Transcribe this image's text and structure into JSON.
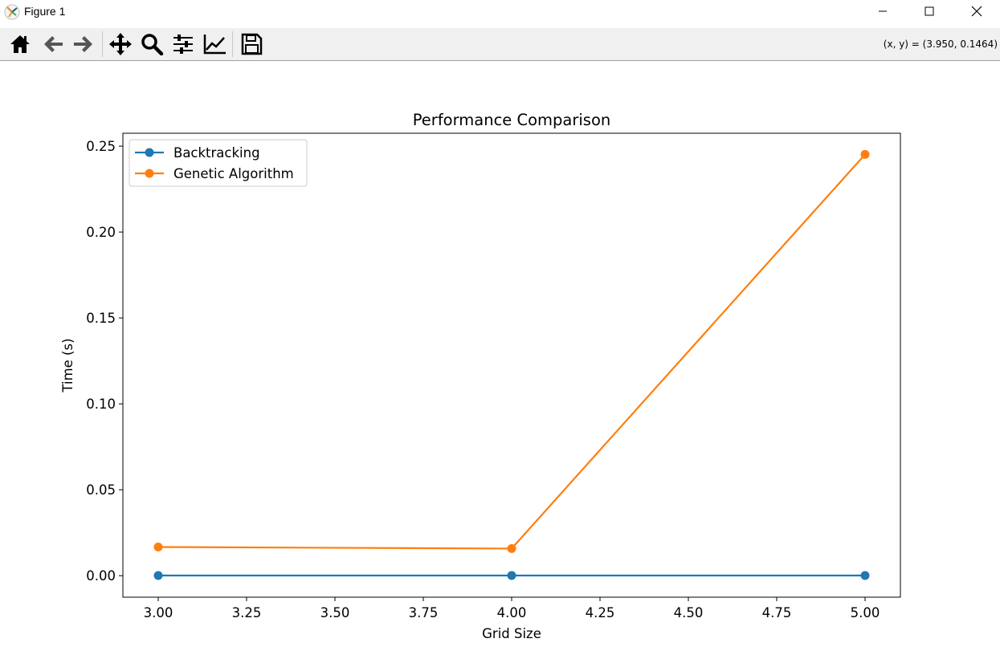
{
  "window": {
    "title": "Figure 1",
    "icon": "matplotlib-icon"
  },
  "toolbar": {
    "buttons": [
      {
        "name": "home-icon",
        "tooltip": "Home"
      },
      {
        "name": "back-arrow-icon",
        "tooltip": "Back"
      },
      {
        "name": "forward-arrow-icon",
        "tooltip": "Forward"
      },
      {
        "name": "pan-move-icon",
        "tooltip": "Pan"
      },
      {
        "name": "zoom-magnifier-icon",
        "tooltip": "Zoom"
      },
      {
        "name": "configure-subplots-icon",
        "tooltip": "Subplots"
      },
      {
        "name": "edit-axes-icon",
        "tooltip": "Customize"
      },
      {
        "name": "save-floppy-icon",
        "tooltip": "Save"
      }
    ],
    "coords": "(x, y) = (3.950, 0.1464)"
  },
  "chart_data": {
    "type": "line",
    "title": "Performance Comparison",
    "xlabel": "Grid Size",
    "ylabel": "Time (s)",
    "x": [
      3,
      4,
      5
    ],
    "xlim": [
      2.9,
      5.1
    ],
    "ylim": [
      -0.0125,
      0.2575
    ],
    "xticks": [
      "3.00",
      "3.25",
      "3.50",
      "3.75",
      "4.00",
      "4.25",
      "4.50",
      "4.75",
      "5.00"
    ],
    "xtick_values": [
      3.0,
      3.25,
      3.5,
      3.75,
      4.0,
      4.25,
      4.5,
      4.75,
      5.0
    ],
    "yticks": [
      "0.00",
      "0.05",
      "0.10",
      "0.15",
      "0.20",
      "0.25"
    ],
    "ytick_values": [
      0.0,
      0.05,
      0.1,
      0.15,
      0.2,
      0.25
    ],
    "grid": false,
    "legend_position": "top-left",
    "series": [
      {
        "name": "Backtracking",
        "values": [
          0.0001,
          0.0001,
          0.0001
        ],
        "color": "#1f77b4"
      },
      {
        "name": "Genetic Algorithm",
        "values": [
          0.0167,
          0.0158,
          0.2452
        ],
        "color": "#ff7f0e"
      }
    ]
  }
}
